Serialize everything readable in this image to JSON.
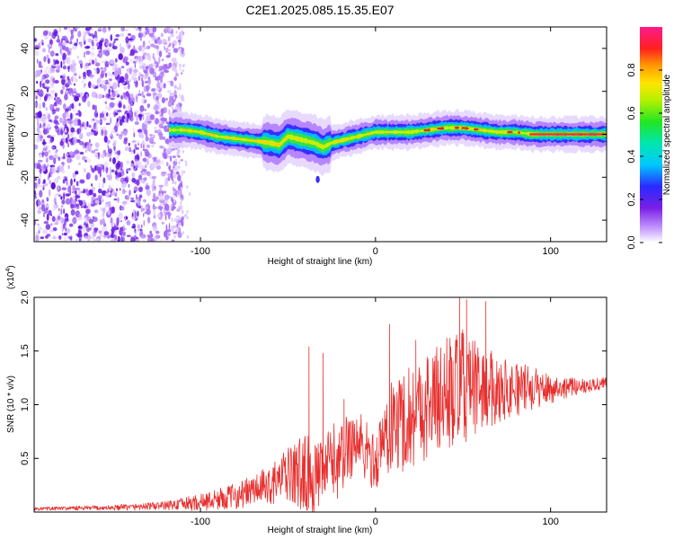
{
  "title": "C2E1.2025.085.15.35.E07",
  "chart_data": [
    {
      "type": "heatmap",
      "xlabel": "Height of straight line (km)",
      "ylabel": "Frequency (Hz)",
      "xlim": [
        -195,
        132
      ],
      "ylim": [
        -50,
        50
      ],
      "x_ticks": [
        -100,
        0,
        100
      ],
      "y_ticks": [
        -40,
        -20,
        0,
        20,
        40
      ],
      "colorbar": {
        "label": "Normalized spectral amplitude",
        "range": [
          0,
          1
        ],
        "ticks": [
          0,
          0.2,
          0.4,
          0.6,
          0.8
        ],
        "tick_labels": [
          "0.0",
          "0.2",
          "0.4",
          "0.6",
          "0.8"
        ],
        "colormap": "rainbow (violet-blue-cyan-green-yellow-red-magenta)"
      },
      "ridge": {
        "x": [
          -118,
          -110,
          -100,
          -90,
          -80,
          -70,
          -60,
          -55,
          -50,
          -45,
          -40,
          -35,
          -30,
          -25,
          -20,
          -15,
          -10,
          -5,
          0,
          5,
          10,
          20,
          30,
          40,
          50,
          60,
          70,
          80,
          90,
          100,
          110,
          120,
          132
        ],
        "y": [
          2,
          2,
          1,
          -1,
          -2,
          -3,
          -4,
          -5,
          -1,
          -2,
          -3,
          -4,
          -6,
          -4,
          -3,
          -2,
          -1,
          0,
          1,
          1,
          1,
          1,
          2,
          3,
          3,
          2,
          1,
          1,
          0,
          0,
          0,
          0,
          0
        ]
      },
      "noise_region_x": [
        -195,
        -118
      ],
      "isolated_blob": {
        "x": -33,
        "y": -21
      }
    },
    {
      "type": "line",
      "xlabel": "Height of straight line (km)",
      "ylabel": "SNR (10 * v/v)",
      "multiplier_label": "(x10^4)",
      "xlim": [
        -195,
        132
      ],
      "ylim": [
        0,
        20000
      ],
      "x_ticks": [
        -100,
        0,
        100
      ],
      "y_ticks": [
        5000,
        10000,
        15000,
        20000
      ],
      "y_tick_labels": [
        "0.5",
        "1.0",
        "1.5",
        "2.0"
      ],
      "color": "#e8302f",
      "envelope": {
        "x": [
          -195,
          -150,
          -120,
          -100,
          -80,
          -60,
          -50,
          -40,
          -35,
          -30,
          -25,
          -20,
          -15,
          -10,
          -5,
          0,
          5,
          10,
          15,
          20,
          30,
          40,
          50,
          60,
          70,
          80,
          90,
          100,
          110,
          120,
          132
        ],
        "mean": [
          300,
          400,
          600,
          900,
          1500,
          2500,
          3500,
          3500,
          3000,
          3500,
          5000,
          4500,
          6500,
          6500,
          5500,
          4500,
          7000,
          8000,
          8500,
          9000,
          10000,
          11000,
          11500,
          11500,
          11500,
          11500,
          11500,
          11500,
          11600,
          11800,
          12000
        ],
        "amp": [
          150,
          250,
          400,
          800,
          1200,
          1800,
          2500,
          4000,
          3500,
          3000,
          3500,
          3500,
          3500,
          3500,
          3000,
          2500,
          4000,
          4500,
          5000,
          5000,
          5000,
          5500,
          5500,
          4000,
          3200,
          2600,
          2000,
          1400,
          900,
          700,
          600
        ]
      },
      "spikes": [
        {
          "x": -38,
          "y": 15400
        },
        {
          "x": -30,
          "y": 14800
        },
        {
          "x": -18,
          "y": 10500
        },
        {
          "x": 8,
          "y": 17500
        },
        {
          "x": 23,
          "y": 16000
        },
        {
          "x": 48,
          "y": 20000
        },
        {
          "x": 52,
          "y": 19800
        },
        {
          "x": 63,
          "y": 19600
        }
      ]
    }
  ]
}
